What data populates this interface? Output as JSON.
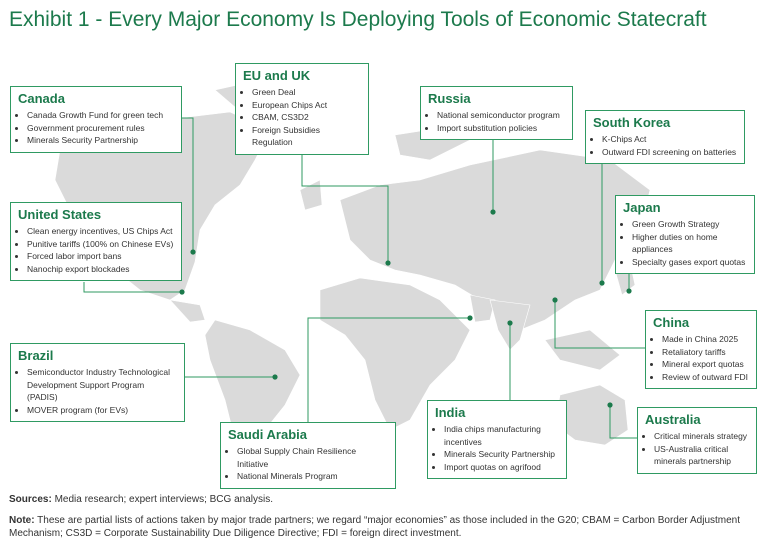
{
  "title": "Exhibit 1 - Every Major Economy Is Deploying Tools of Economic Statecraft",
  "boxes": [
    {
      "name": "Canada",
      "items": [
        "Canada Growth Fund for green tech",
        "Government procurement rules",
        "Minerals Security Partnership"
      ]
    },
    {
      "name": "EU and UK",
      "items": [
        "Green Deal",
        "European Chips Act",
        "CBAM, CS3D2",
        "Foreign Subsidies Regulation"
      ]
    },
    {
      "name": "Russia",
      "items": [
        "National semiconductor program",
        "Import substitution policies"
      ]
    },
    {
      "name": "South Korea",
      "items": [
        "K-Chips Act",
        "Outward FDI screening on batteries"
      ]
    },
    {
      "name": "United States",
      "items": [
        "Clean energy incentives, US Chips Act",
        "Punitive tariffs (100% on Chinese EVs)",
        "Forced labor import bans",
        "Nanochip export blockades"
      ]
    },
    {
      "name": "Japan",
      "items": [
        "Green Growth Strategy",
        "Higher duties on home appliances",
        "Specialty gases export quotas"
      ]
    },
    {
      "name": "Brazil",
      "items": [
        "Semiconductor Industry Technological Development Support Program (PADIS)",
        "MOVER program (for EVs)"
      ]
    },
    {
      "name": "China",
      "items": [
        "Made in China 2025",
        "Retaliatory tariffs",
        "Mineral export quotas",
        "Review of outward FDI"
      ]
    },
    {
      "name": "India",
      "items": [
        "India chips manufacturing incentives",
        "Minerals Security Partnership",
        "Import quotas on agrifood"
      ]
    },
    {
      "name": "Australia",
      "items": [
        "Critical minerals strategy",
        "US-Australia critical minerals partnership"
      ]
    },
    {
      "name": "Saudi Arabia",
      "items": [
        "Global Supply Chain Resilience Initiative",
        "National Minerals Program"
      ]
    }
  ],
  "sources": {
    "label": "Sources:",
    "text": "Media research; expert interviews; BCG analysis."
  },
  "note": {
    "label": "Note:",
    "text": "These are partial lists of actions taken by major trade partners; we regard “major economies” as those included in the G20; CBAM = Carbon Border Adjustment Mechanism; CS3D = Corporate Sustainability Due Diligence Directive; FDI = foreign direct investment."
  }
}
